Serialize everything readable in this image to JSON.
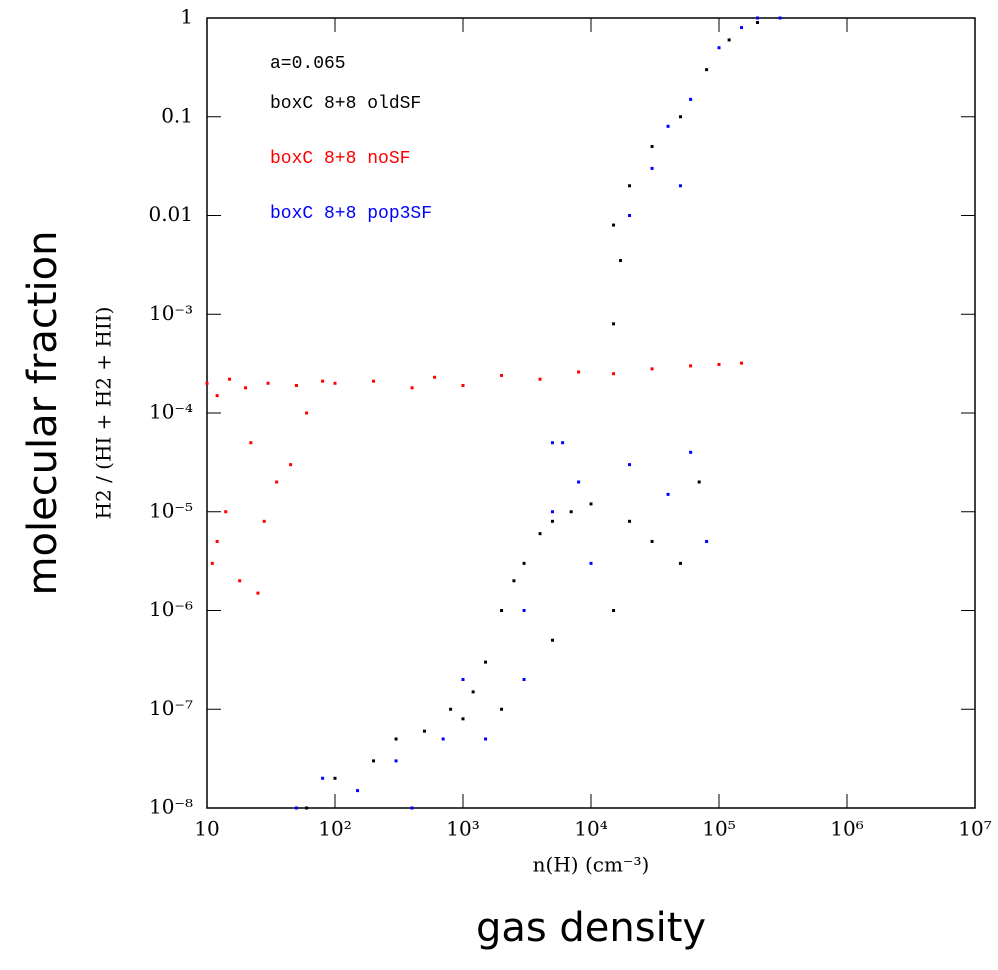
{
  "chart_data": {
    "type": "scatter",
    "xlabel": "n(H) (cm⁻³)",
    "ylabel": "H2 / (HI + H2 + HII)",
    "outer_labels": {
      "x": "gas density",
      "y": "molecular fraction"
    },
    "annotation": "a=0.065",
    "log_x": true,
    "log_y": true,
    "xlim": [
      10,
      10000000
    ],
    "ylim": [
      1e-08,
      1
    ],
    "xticks": [
      10,
      {
        "value": 100,
        "label": "10²"
      },
      {
        "value": 1000,
        "label": "10³"
      },
      {
        "value": 10000,
        "label": "10⁴"
      },
      {
        "value": 100000,
        "label": "10⁵"
      },
      {
        "value": 1000000,
        "label": "10⁶"
      },
      {
        "value": 10000000,
        "label": "10⁷"
      }
    ],
    "yticks": [
      {
        "value": 1e-08,
        "label": "10⁻⁸"
      },
      {
        "value": 1e-07,
        "label": "10⁻⁷"
      },
      {
        "value": 1e-06,
        "label": "10⁻⁶"
      },
      {
        "value": 1e-05,
        "label": "10⁻⁵"
      },
      {
        "value": 0.0001,
        "label": "10⁻⁴"
      },
      {
        "value": 0.001,
        "label": "10⁻³"
      },
      0.01,
      0.1,
      1
    ],
    "series": [
      {
        "name": "boxC 8+8 oldSF",
        "color": "#000000",
        "x": [
          60,
          100,
          200,
          300,
          500,
          800,
          1000,
          1200,
          1500,
          2000,
          2500,
          3000,
          4000,
          5000,
          7000,
          10000,
          20000,
          30000,
          50000,
          70000,
          2000,
          5000,
          15000,
          15000,
          20000,
          30000,
          50000,
          80000,
          120000,
          200000,
          17000,
          15000
        ],
        "y": [
          1e-08,
          2e-08,
          3e-08,
          5e-08,
          6e-08,
          1e-07,
          8e-08,
          1.5e-07,
          3e-07,
          1e-06,
          2e-06,
          3e-06,
          6e-06,
          8e-06,
          1e-05,
          1.2e-05,
          8e-06,
          5e-06,
          3e-06,
          2e-05,
          1e-07,
          5e-07,
          1e-06,
          0.008,
          0.02,
          0.05,
          0.1,
          0.3,
          0.6,
          0.9,
          0.0035,
          0.0008
        ]
      },
      {
        "name": "boxC 8+8 noSF",
        "color": "#ff0000",
        "x": [
          10,
          12,
          15,
          20,
          30,
          50,
          80,
          100,
          200,
          400,
          600,
          1000,
          2000,
          4000,
          8000,
          15000,
          30000,
          60000,
          100000,
          150000,
          11,
          14,
          18,
          22,
          28,
          35,
          45,
          60,
          12,
          25
        ],
        "y": [
          0.0002,
          0.00015,
          0.00022,
          0.00018,
          0.0002,
          0.00019,
          0.00021,
          0.0002,
          0.00021,
          0.00018,
          0.00023,
          0.00019,
          0.00024,
          0.00022,
          0.00026,
          0.00025,
          0.00028,
          0.0003,
          0.00031,
          0.00032,
          3e-06,
          1e-05,
          2e-06,
          5e-05,
          8e-06,
          2e-05,
          3e-05,
          0.0001,
          5e-06,
          1.5e-06
        ]
      },
      {
        "name": "boxC 8+8 pop3SF",
        "color": "#0000ff",
        "x": [
          50,
          80,
          150,
          300,
          400,
          700,
          1000,
          1500,
          3000,
          3000,
          5000,
          8000,
          10000,
          20000,
          40000,
          60000,
          80000,
          5000,
          6000,
          20000,
          30000,
          40000,
          60000,
          100000,
          150000,
          200000,
          300000,
          50000
        ],
        "y": [
          1e-08,
          2e-08,
          1.5e-08,
          3e-08,
          1e-08,
          5e-08,
          2e-07,
          5e-08,
          2e-07,
          1e-06,
          1e-05,
          2e-05,
          3e-06,
          3e-05,
          1.5e-05,
          4e-05,
          5e-06,
          5e-05,
          5e-05,
          0.01,
          0.03,
          0.08,
          0.15,
          0.5,
          0.8,
          1,
          1,
          0.02
        ]
      }
    ]
  }
}
